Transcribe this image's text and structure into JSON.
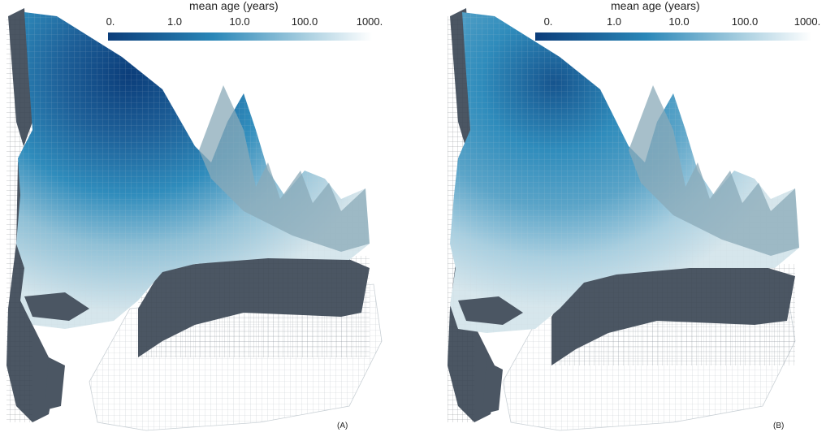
{
  "colors": {
    "dark_blue": "#0b3d7a",
    "mid_blue": "#2a87b8",
    "light_blue": "#a9cfe0",
    "pale": "#d6e6ec",
    "wall": "#4b5663",
    "mesh": "#9aa3aa"
  },
  "panels": [
    {
      "label": "(A)",
      "colorbar": {
        "title": "mean age (years)",
        "ticks": [
          "0.",
          "1.0",
          "10.0",
          "100.0",
          "1000."
        ],
        "colormap": "blues-reversed",
        "scale": "log"
      }
    },
    {
      "label": "(B)",
      "colorbar": {
        "title": "mean age (years)",
        "ticks": [
          "0.",
          "1.0",
          "10.0",
          "100.0",
          "1000."
        ],
        "colormap": "blues-reversed",
        "scale": "log"
      }
    }
  ]
}
